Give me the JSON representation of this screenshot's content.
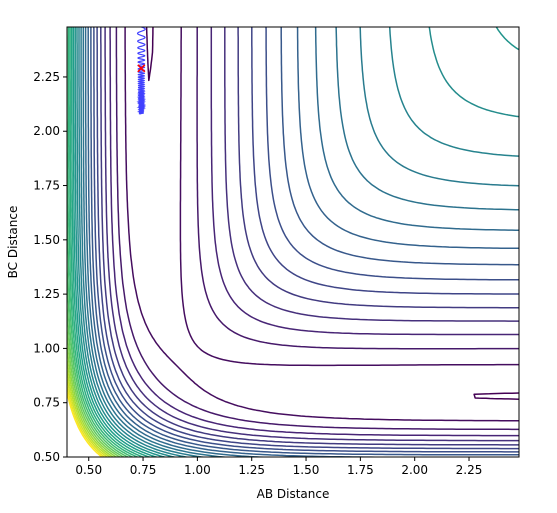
{
  "chart_data": {
    "type": "contour",
    "title": "",
    "xlabel": "AB Distance",
    "ylabel": "BC Distance",
    "xlim": [
      0.4,
      2.48
    ],
    "ylim": [
      0.5,
      2.48
    ],
    "x_ticks": [
      0.5,
      0.75,
      1.0,
      1.25,
      1.5,
      1.75,
      2.0,
      2.25
    ],
    "x_tick_labels": [
      "0.50",
      "0.75",
      "1.00",
      "1.25",
      "1.50",
      "1.75",
      "2.00",
      "2.25"
    ],
    "y_ticks": [
      0.5,
      0.75,
      1.0,
      1.25,
      1.5,
      1.75,
      2.0,
      2.25
    ],
    "y_tick_labels": [
      "0.50",
      "0.75",
      "1.00",
      "1.25",
      "1.50",
      "1.75",
      "2.00",
      "2.25"
    ],
    "grid": false,
    "colormap": "viridis",
    "contour_levels": 30,
    "trajectory": {
      "color": "#0000ff",
      "x_center": 0.742,
      "y_start": 2.48,
      "y_end": 2.08
    },
    "marker": {
      "symbol": "x",
      "color": "#ff0000",
      "x": 0.742,
      "y": 2.29
    }
  }
}
